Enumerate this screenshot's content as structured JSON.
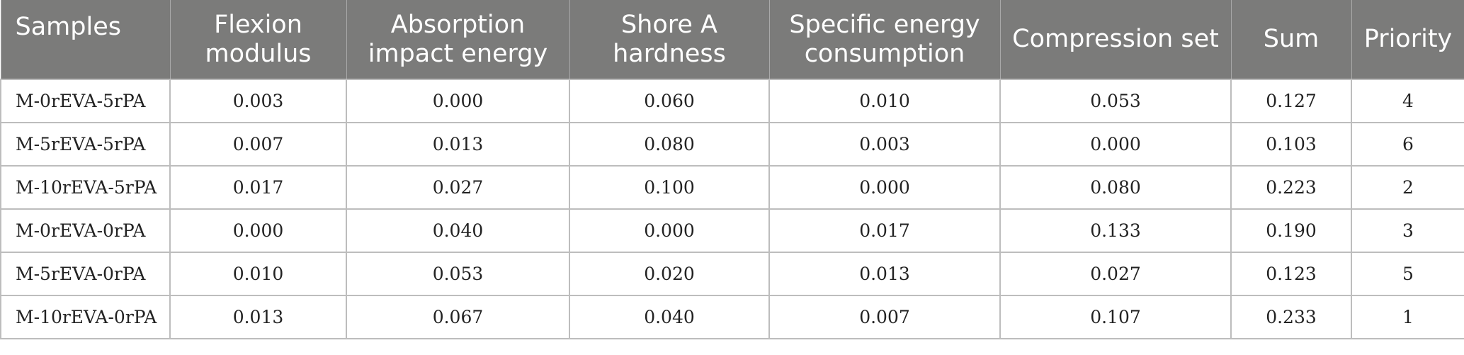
{
  "table": {
    "headers": [
      "Samples",
      "Flexion modulus",
      "Absorption impact energy",
      "Shore A hardness",
      "Specific energy consumption",
      "Compression set",
      "Sum",
      "Priority"
    ],
    "rows": [
      [
        "M-0rEVA-5rPA",
        "0.003",
        "0.000",
        "0.060",
        "0.010",
        "0.053",
        "0.127",
        "4"
      ],
      [
        "M-5rEVA-5rPA",
        "0.007",
        "0.013",
        "0.080",
        "0.003",
        "0.000",
        "0.103",
        "6"
      ],
      [
        "M-10rEVA-5rPA",
        "0.017",
        "0.027",
        "0.100",
        "0.000",
        "0.080",
        "0.223",
        "2"
      ],
      [
        "M-0rEVA-0rPA",
        "0.000",
        "0.040",
        "0.000",
        "0.017",
        "0.133",
        "0.190",
        "3"
      ],
      [
        "M-5rEVA-0rPA",
        "0.010",
        "0.053",
        "0.020",
        "0.013",
        "0.027",
        "0.123",
        "5"
      ],
      [
        "M-10rEVA-0rPA",
        "0.013",
        "0.067",
        "0.040",
        "0.007",
        "0.107",
        "0.233",
        "1"
      ]
    ]
  },
  "colors": {
    "header_background": "#7b7b7a",
    "header_text": "#ffffff",
    "grid_line": "#bdbdbd"
  }
}
